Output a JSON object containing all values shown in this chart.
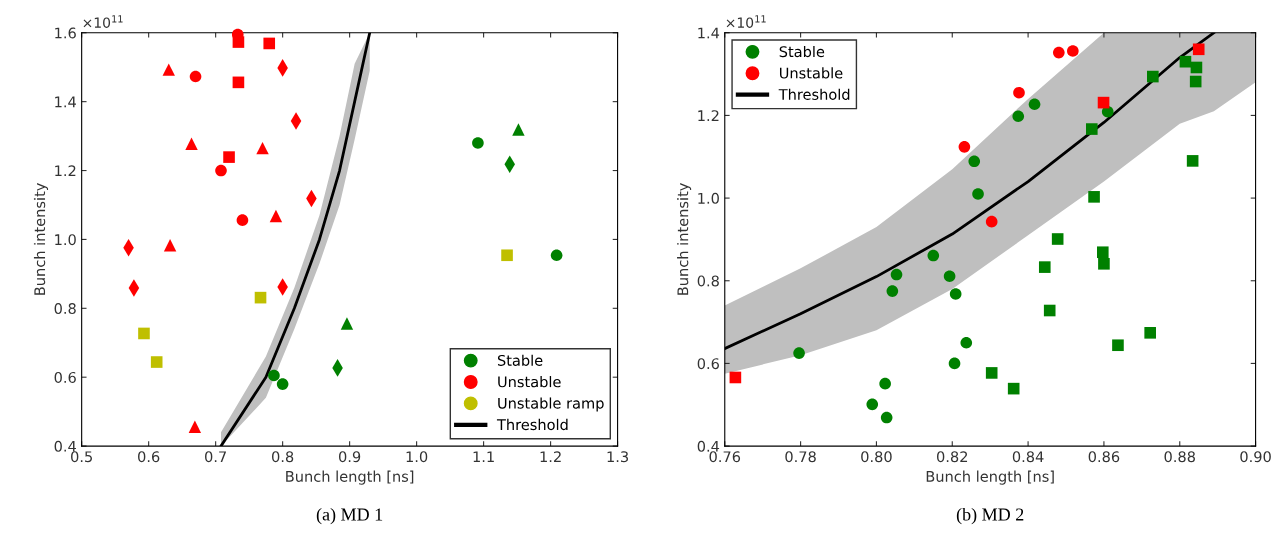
{
  "chart_data": [
    {
      "type": "scatter",
      "title": "(a) MD 1",
      "xlabel": "Bunch length [ns]",
      "ylabel": "Bunch intensity",
      "annotations": [
        "×10$^{11}$"
      ],
      "xlim": [
        0.5,
        1.3
      ],
      "xticks": [
        0.5,
        0.6,
        0.7,
        0.8,
        0.9,
        {
          "value": 1,
          "label": "1.0"
        },
        1.1,
        1.2,
        1.3
      ],
      "ylim": [
        0.4,
        1.6
      ],
      "yticks": [
        0.4,
        0.6,
        0.8,
        {
          "value": 1,
          "label": "1.0"
        },
        1.2,
        1.4,
        1.6
      ],
      "grid": false,
      "legend": "bottom right",
      "series": [
        {
          "name": "Stable",
          "color": "#008000",
          "marker": "circle",
          "x": [
            0.787,
            0.8,
            1.0915,
            1.209
          ],
          "values": [
            0.605,
            0.58,
            1.28,
            0.954
          ]
        },
        {
          "color": "#008000",
          "marker": "triangle",
          "x": [
            0.896,
            1.152
          ],
          "values": [
            0.756,
            1.319
          ]
        },
        {
          "color": "#008000",
          "marker": "diamond",
          "x": [
            0.882,
            1.139
          ],
          "values": [
            0.627,
            1.218
          ]
        },
        {
          "name": "Unstable",
          "color": "#ff0000",
          "marker": "circle",
          "x": [
            0.733,
            0.67,
            0.708,
            0.74
          ],
          "values": [
            1.595,
            1.473,
            1.2,
            1.056
          ]
        },
        {
          "color": "#ff0000",
          "marker": "square",
          "x": [
            0.734,
            0.78,
            0.734,
            0.72
          ],
          "values": [
            1.573,
            1.569,
            1.456,
            1.239
          ]
        },
        {
          "color": "#ff0000",
          "marker": "triangle",
          "x": [
            0.63,
            0.664,
            0.77,
            0.79,
            0.632,
            0.669
          ],
          "values": [
            1.493,
            1.278,
            1.265,
            1.068,
            0.983,
            0.456
          ]
        },
        {
          "color": "#ff0000",
          "marker": "diamond",
          "x": [
            0.8,
            0.82,
            0.843,
            0.57,
            0.578,
            0.8
          ],
          "values": [
            1.498,
            1.344,
            1.119,
            0.976,
            0.859,
            0.862
          ]
        },
        {
          "name": "Unstable ramp",
          "color": "#bfbf00",
          "marker": "square",
          "x": [
            0.767,
            0.593,
            0.612,
            1.135
          ],
          "values": [
            0.831,
            0.727,
            0.644,
            0.954
          ]
        },
        {
          "name": "Threshold",
          "type": "line",
          "color": "#000000",
          "marker": "none",
          "x": [
            0.708,
            0.775,
            0.8175,
            0.855,
            0.885,
            0.9075,
            0.93
          ],
          "values": [
            0.4,
            0.6,
            0.8,
            1.0,
            1.2,
            1.4,
            1.6
          ],
          "lower": [
            0.4,
            0.54,
            0.74,
            0.93,
            1.1,
            1.29,
            1.49
          ],
          "upper": [
            0.44,
            0.66,
            0.86,
            1.07,
            1.3,
            1.51,
            1.6
          ]
        }
      ]
    },
    {
      "type": "scatter",
      "title": "(b) MD 2",
      "xlabel": "Bunch length [ns]",
      "ylabel": "Bunch intensity",
      "annotations": [
        "×10$^{11}$"
      ],
      "xlim": [
        0.76,
        0.9
      ],
      "xticks": [
        0.76,
        0.78,
        {
          "value": 0.8,
          "label": "0.80"
        },
        0.82,
        0.84,
        0.86,
        0.88,
        {
          "value": 0.9,
          "label": "0.90"
        }
      ],
      "ylim": [
        0.4,
        1.4
      ],
      "yticks": [
        0.4,
        0.6,
        0.8,
        {
          "value": 1,
          "label": "1.0"
        },
        1.2,
        1.4
      ],
      "grid": false,
      "legend": "top left",
      "series": [
        {
          "name": "Stable",
          "color": "#008000",
          "marker": "circle",
          "x": [
            0.8258,
            0.8268,
            0.815,
            0.8053,
            0.8042,
            0.8193,
            0.8209,
            0.7796,
            0.8237,
            0.8206,
            0.8023,
            0.7989,
            0.8027,
            0.8374,
            0.8417,
            0.861
          ],
          "values": [
            1.089,
            1.01,
            0.861,
            0.815,
            0.775,
            0.811,
            0.768,
            0.625,
            0.65,
            0.6,
            0.551,
            0.501,
            0.469,
            1.198,
            1.227,
            1.209
          ]
        },
        {
          "color": "#008000",
          "marker": "square",
          "x": [
            0.8304,
            0.8729,
            0.8815,
            0.8844,
            0.8842,
            0.8568,
            0.8834,
            0.8574,
            0.8478,
            0.8597,
            0.86,
            0.8444,
            0.8457,
            0.8722,
            0.8637,
            0.8362
          ],
          "values": [
            0.577,
            1.294,
            1.33,
            1.316,
            1.282,
            1.167,
            1.09,
            1.003,
            0.901,
            0.869,
            0.841,
            0.833,
            0.728,
            0.674,
            0.644,
            0.539
          ]
        },
        {
          "name": "Unstable",
          "color": "#ff0000",
          "marker": "circle",
          "x": [
            0.8232,
            0.8304,
            0.8481,
            0.8518,
            0.8376
          ],
          "values": [
            1.124,
            0.943,
            1.352,
            1.356,
            1.255
          ]
        },
        {
          "color": "#ff0000",
          "marker": "square",
          "x": [
            0.7628,
            0.8599,
            0.885
          ],
          "values": [
            0.566,
            1.231,
            1.36
          ]
        },
        {
          "name": "Threshold",
          "type": "line",
          "color": "#000000",
          "marker": "none",
          "x": [
            0.76,
            0.78,
            0.8,
            0.82,
            0.84,
            0.86,
            0.88,
            0.889,
            0.9
          ],
          "values": [
            0.636,
            0.72,
            0.81,
            0.913,
            1.04,
            1.183,
            1.34,
            1.4,
            null
          ],
          "lower": [
            0.575,
            0.62,
            0.68,
            0.78,
            0.91,
            1.04,
            1.18,
            1.21,
            1.28
          ],
          "upper": [
            0.74,
            0.83,
            0.93,
            1.07,
            1.24,
            1.4,
            1.4,
            1.4,
            1.4
          ]
        }
      ]
    }
  ]
}
